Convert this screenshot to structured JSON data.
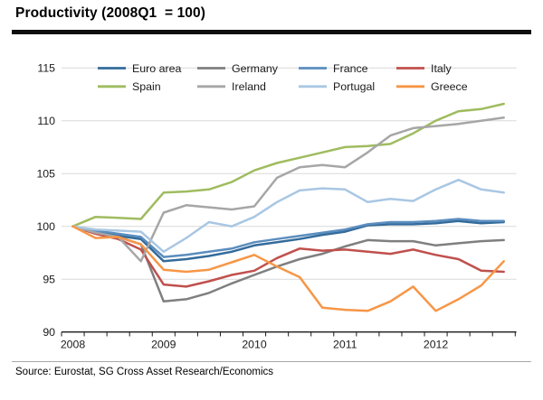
{
  "header": {
    "title": "Productivity (2008Q1  = 100)"
  },
  "footer": {
    "source": "Source: Eurostat, SG Cross Asset Research/Economics"
  },
  "colors": {
    "grid": "#d9d9d9",
    "axis": "#1a1a1a",
    "text": "#1a1a1a"
  },
  "chart_data": {
    "type": "line",
    "title": "Productivity (2008Q1 = 100)",
    "xlabel": "",
    "ylabel": "",
    "ylim": [
      90,
      115
    ],
    "yticks": [
      90,
      95,
      100,
      105,
      110,
      115
    ],
    "grid": "horizontal",
    "legend_position": "top-inside, 2 rows x 4 columns",
    "x": [
      "2008Q1",
      "2008Q2",
      "2008Q3",
      "2008Q4",
      "2009Q1",
      "2009Q2",
      "2009Q3",
      "2009Q4",
      "2010Q1",
      "2010Q2",
      "2010Q3",
      "2010Q4",
      "2011Q1",
      "2011Q2",
      "2011Q3",
      "2011Q4",
      "2012Q1",
      "2012Q2",
      "2012Q3",
      "2012Q4"
    ],
    "year_labels": [
      "2008",
      "2009",
      "2010",
      "2011",
      "2012"
    ],
    "series": [
      {
        "name": "Euro area",
        "color": "#336b9b",
        "values": [
          100,
          99.5,
          99.1,
          98.8,
          96.7,
          96.9,
          97.2,
          97.6,
          98.2,
          98.5,
          98.8,
          99.2,
          99.5,
          100.1,
          100.2,
          100.2,
          100.3,
          100.5,
          100.3,
          100.4
        ]
      },
      {
        "name": "Germany",
        "color": "#7f7f7f",
        "values": [
          100,
          99.4,
          99.0,
          98.3,
          92.9,
          93.1,
          93.7,
          94.6,
          95.4,
          96.2,
          96.9,
          97.4,
          98.1,
          98.7,
          98.6,
          98.6,
          98.2,
          98.4,
          98.6,
          98.7
        ]
      },
      {
        "name": "France",
        "color": "#5b8dbe",
        "values": [
          100,
          99.6,
          99.3,
          99.0,
          97.1,
          97.3,
          97.6,
          97.9,
          98.5,
          98.8,
          99.1,
          99.4,
          99.7,
          100.2,
          100.4,
          100.4,
          100.5,
          100.7,
          100.5,
          100.5
        ]
      },
      {
        "name": "Italy",
        "color": "#c0504d",
        "values": [
          100,
          99.3,
          98.8,
          97.8,
          94.5,
          94.3,
          94.8,
          95.4,
          95.8,
          97.0,
          97.9,
          97.7,
          97.8,
          97.6,
          97.4,
          97.8,
          97.3,
          96.9,
          95.8,
          95.7
        ]
      },
      {
        "name": "Spain",
        "color": "#9fbc5f",
        "values": [
          100,
          100.9,
          100.8,
          100.7,
          103.2,
          103.3,
          103.5,
          104.2,
          105.3,
          106.0,
          106.5,
          107.0,
          107.5,
          107.6,
          107.8,
          108.8,
          110.0,
          110.9,
          111.1,
          111.6
        ]
      },
      {
        "name": "Ireland",
        "color": "#a6a6a6",
        "values": [
          100,
          99.4,
          99.0,
          96.7,
          101.3,
          102.0,
          101.8,
          101.6,
          101.9,
          104.6,
          105.6,
          105.8,
          105.6,
          107.0,
          108.6,
          109.3,
          109.5,
          109.7,
          110.0,
          110.3
        ]
      },
      {
        "name": "Portugal",
        "color": "#a9c7e3",
        "values": [
          100,
          99.7,
          99.6,
          99.5,
          97.6,
          98.9,
          100.4,
          100.0,
          100.9,
          102.3,
          103.4,
          103.6,
          103.5,
          102.3,
          102.6,
          102.4,
          103.5,
          104.4,
          103.5,
          103.2
        ]
      },
      {
        "name": "Greece",
        "color": "#f79646",
        "values": [
          100,
          98.9,
          99.0,
          98.3,
          95.9,
          95.7,
          95.9,
          96.6,
          97.3,
          96.2,
          95.2,
          92.3,
          92.1,
          92.0,
          92.9,
          94.3,
          92.0,
          93.1,
          94.4,
          96.7
        ]
      }
    ]
  }
}
